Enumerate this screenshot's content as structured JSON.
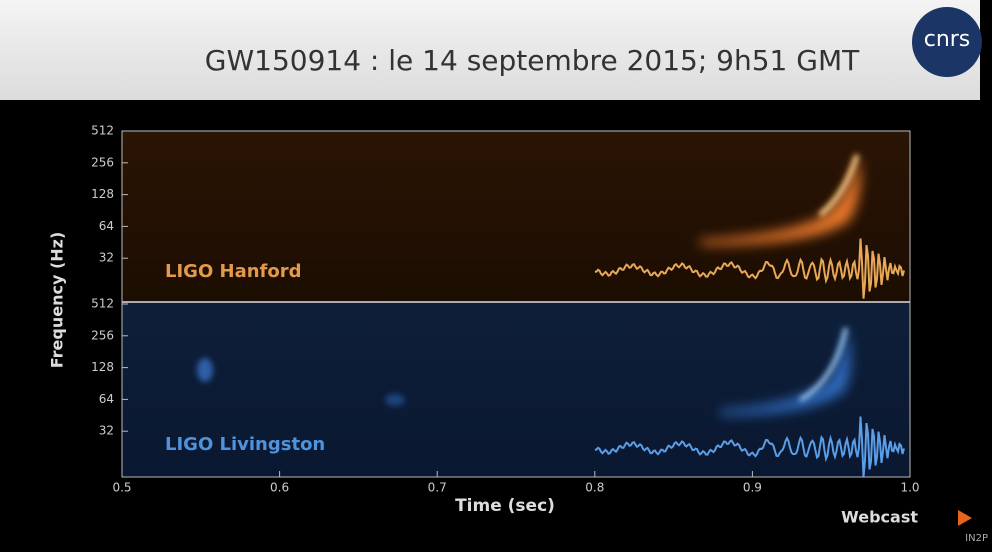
{
  "slide": {
    "title": "GW150914 : le 14 septembre 2015; 9h51 GMT",
    "logo": "cnrs",
    "plot": {
      "y_axis_label": "Frequency (Hz)",
      "x_axis_label": "Time (sec)",
      "x_ticks": [
        "0.5",
        "0.6",
        "0.7",
        "0.8",
        "0.9",
        "1.0"
      ],
      "panels": [
        {
          "label": "LIGO Hanford",
          "y_ticks": [
            "512",
            "256",
            "128",
            "64",
            "32"
          ]
        },
        {
          "label": "LIGO Livingston",
          "y_ticks": [
            "512",
            "256",
            "128",
            "64",
            "32"
          ]
        }
      ]
    }
  },
  "watermark": {
    "brand": "Webcast",
    "sub": "IN2P"
  }
}
